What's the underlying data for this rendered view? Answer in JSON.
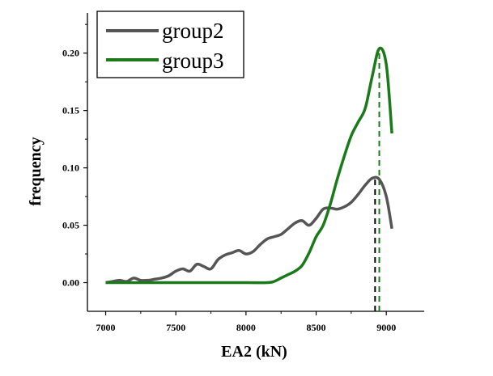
{
  "chart_data": {
    "type": "line",
    "xlabel": "EA2 (kN)",
    "ylabel": "frequency",
    "xlim": [
      6870,
      9270
    ],
    "ylim": [
      -0.025,
      0.235
    ],
    "xticks": [
      7000,
      7500,
      8000,
      8500,
      9000
    ],
    "yticks": [
      0.0,
      0.05,
      0.1,
      0.15,
      0.2
    ],
    "xtick_labels": [
      "7000",
      "7500",
      "8000",
      "8500",
      "9000"
    ],
    "ytick_labels": [
      "0.00",
      "0.05",
      "0.10",
      "0.15",
      "0.20"
    ],
    "legend_position": "top-left",
    "grid": false,
    "series": [
      {
        "name": "group2",
        "color": "#555555",
        "peak_marker_x": 8920,
        "x": [
          7000,
          7050,
          7100,
          7150,
          7200,
          7250,
          7300,
          7350,
          7400,
          7450,
          7500,
          7550,
          7600,
          7650,
          7700,
          7750,
          7800,
          7850,
          7900,
          7950,
          8000,
          8050,
          8100,
          8150,
          8200,
          8250,
          8300,
          8350,
          8400,
          8450,
          8500,
          8550,
          8600,
          8650,
          8700,
          8750,
          8800,
          8850,
          8900,
          8950,
          9000,
          9040
        ],
        "y": [
          0.0,
          0.001,
          0.002,
          0.001,
          0.004,
          0.002,
          0.002,
          0.003,
          0.004,
          0.006,
          0.01,
          0.012,
          0.01,
          0.016,
          0.014,
          0.012,
          0.02,
          0.024,
          0.026,
          0.028,
          0.025,
          0.027,
          0.033,
          0.038,
          0.04,
          0.042,
          0.047,
          0.052,
          0.054,
          0.05,
          0.056,
          0.064,
          0.065,
          0.064,
          0.066,
          0.07,
          0.077,
          0.085,
          0.091,
          0.09,
          0.075,
          0.047
        ]
      },
      {
        "name": "group3",
        "color": "#1a7a1a",
        "peak_marker_x": 8950,
        "x": [
          7000,
          7500,
          8000,
          8150,
          8200,
          8250,
          8300,
          8350,
          8400,
          8450,
          8500,
          8550,
          8600,
          8650,
          8700,
          8750,
          8800,
          8850,
          8900,
          8950,
          9000,
          9040
        ],
        "y": [
          0.0,
          0.0,
          0.0,
          0.0,
          0.001,
          0.004,
          0.007,
          0.01,
          0.015,
          0.026,
          0.04,
          0.05,
          0.068,
          0.09,
          0.11,
          0.128,
          0.14,
          0.152,
          0.18,
          0.204,
          0.19,
          0.13
        ]
      }
    ]
  }
}
